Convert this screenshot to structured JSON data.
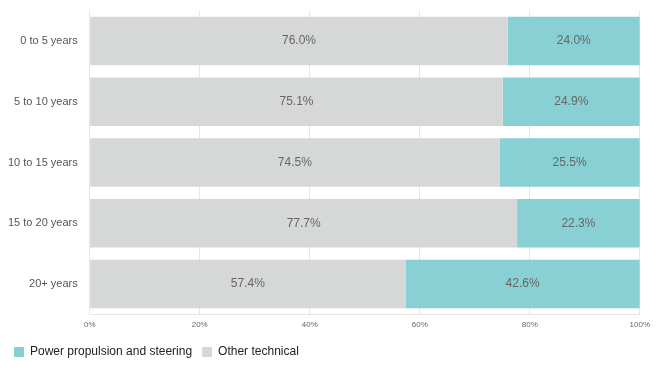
{
  "chart_data": {
    "type": "bar",
    "orientation": "horizontal",
    "stacked": true,
    "grid": true,
    "legend": "bottom",
    "data_labels": true,
    "categories": [
      "0 to 5 years",
      "5 to 10 years",
      "10 to 15 years",
      "15 to 20 years",
      "20+ years"
    ],
    "series": [
      {
        "name": "Other technical",
        "color": "#d6d8d8",
        "values": [
          76.0,
          75.1,
          74.5,
          77.7,
          57.4
        ],
        "value_labels": [
          "76.0%",
          "75.1%",
          "74.5%",
          "77.7%",
          "57.4%"
        ]
      },
      {
        "name": "Power propulsion and steering",
        "color": "#88d0d3",
        "values": [
          24.0,
          24.9,
          25.5,
          22.3,
          42.6
        ],
        "value_labels": [
          "24.0%",
          "24.9%",
          "25.5%",
          "22.3%",
          "42.6%"
        ]
      }
    ],
    "xlim": [
      0,
      100
    ],
    "xticks": [
      {
        "value": 0,
        "label": "0%"
      },
      {
        "value": 20,
        "label": "20%"
      },
      {
        "value": 40,
        "label": "40%"
      },
      {
        "value": 60,
        "label": "60%"
      },
      {
        "value": 80,
        "label": "80%"
      },
      {
        "value": 100,
        "label": "100%"
      }
    ]
  }
}
